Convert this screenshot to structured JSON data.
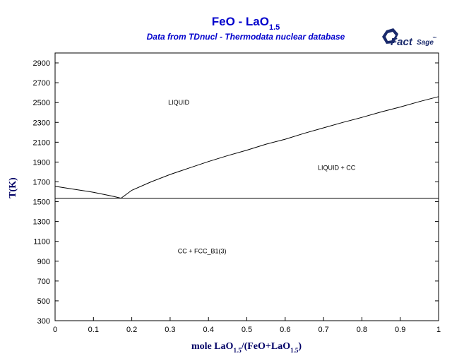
{
  "chart_data": {
    "type": "line",
    "title_parts": [
      "FeO - LaO",
      "1.5"
    ],
    "subtitle": "Data from TDnucl - Thermodata nuclear database",
    "logo": {
      "text_main": "Fact",
      "text_tail": "Sage",
      "mark": "™"
    },
    "xlabel_parts": [
      "mole LaO",
      "1.5",
      "/(FeO+LaO",
      "1.5",
      ")"
    ],
    "ylabel": "T(K)",
    "xlim": [
      0,
      1
    ],
    "ylim": [
      300,
      3000
    ],
    "x_ticks": [
      0,
      0.1,
      0.2,
      0.3,
      0.4,
      0.5,
      0.6,
      0.7,
      0.8,
      0.9,
      1
    ],
    "x_tick_labels": [
      "0",
      "0.1",
      "0.2",
      "0.3",
      "0.4",
      "0.5",
      "0.6",
      "0.7",
      "0.8",
      "0.9",
      "1"
    ],
    "y_ticks": [
      300,
      500,
      700,
      900,
      1100,
      1300,
      1500,
      1700,
      1900,
      2100,
      2300,
      2500,
      2700,
      2900
    ],
    "y_tick_labels": [
      "300",
      "500",
      "700",
      "900",
      "1100",
      "1300",
      "1500",
      "1700",
      "1900",
      "2100",
      "2300",
      "2500",
      "2700",
      "2900"
    ],
    "grid": false,
    "series": [
      {
        "x": [
          0,
          0.05,
          0.1,
          0.15,
          0.172
        ],
        "y": [
          1655,
          1625,
          1595,
          1555,
          1535
        ]
      },
      {
        "x": [
          0.172,
          0.2,
          0.25,
          0.3,
          0.35,
          0.4,
          0.45,
          0.5,
          0.55,
          0.6,
          0.65,
          0.7,
          0.75,
          0.8,
          0.85,
          0.9,
          0.95,
          1.0
        ],
        "y": [
          1535,
          1615,
          1700,
          1775,
          1840,
          1905,
          1965,
          2020,
          2080,
          2130,
          2190,
          2245,
          2300,
          2350,
          2405,
          2455,
          2510,
          2560
        ]
      },
      {
        "x": [
          0,
          1
        ],
        "y": [
          1535,
          1535
        ]
      }
    ],
    "annotations": [
      {
        "text": "LIQUID",
        "x": 0.295,
        "y": 2480
      },
      {
        "text": "LIQUID + CC",
        "x": 0.685,
        "y": 1820
      },
      {
        "text": "CC + FCC_B1(3)",
        "x": 0.32,
        "y": 980
      }
    ]
  }
}
